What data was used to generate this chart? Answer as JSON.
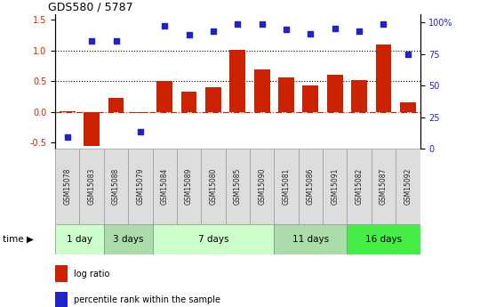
{
  "title": "GDS580 / 5787",
  "samples": [
    "GSM15078",
    "GSM15083",
    "GSM15088",
    "GSM15079",
    "GSM15084",
    "GSM15089",
    "GSM15080",
    "GSM15085",
    "GSM15090",
    "GSM15081",
    "GSM15086",
    "GSM15091",
    "GSM15082",
    "GSM15087",
    "GSM15092"
  ],
  "log_ratio": [
    0.02,
    -0.55,
    0.23,
    -0.02,
    0.51,
    0.33,
    0.41,
    1.01,
    0.69,
    0.56,
    0.43,
    0.61,
    0.52,
    1.1,
    0.16
  ],
  "percentile_rank_pct": [
    5,
    83,
    83,
    9,
    95,
    88,
    91,
    97,
    97,
    92,
    89,
    93,
    91,
    97,
    72
  ],
  "groups": [
    {
      "label": "1 day",
      "start": 0,
      "end": 2,
      "color": "#ccffcc"
    },
    {
      "label": "3 days",
      "start": 2,
      "end": 4,
      "color": "#aaddaa"
    },
    {
      "label": "7 days",
      "start": 4,
      "end": 9,
      "color": "#ccffcc"
    },
    {
      "label": "11 days",
      "start": 9,
      "end": 12,
      "color": "#aaddaa"
    },
    {
      "label": "16 days",
      "start": 12,
      "end": 15,
      "color": "#44ee44"
    }
  ],
  "bar_color": "#cc2200",
  "dot_color": "#2222cc",
  "left_ylim": [
    -0.6,
    1.6
  ],
  "right_ylim": [
    0,
    106.67
  ],
  "left_yticks": [
    -0.5,
    0.0,
    0.5,
    1.0,
    1.5
  ],
  "right_yticks": [
    0,
    25,
    50,
    75,
    100
  ],
  "dotted_lines": [
    0.5,
    1.0
  ],
  "legend_items": [
    {
      "label": "log ratio",
      "color": "#cc2200"
    },
    {
      "label": "percentile rank within the sample",
      "color": "#2222cc"
    }
  ]
}
